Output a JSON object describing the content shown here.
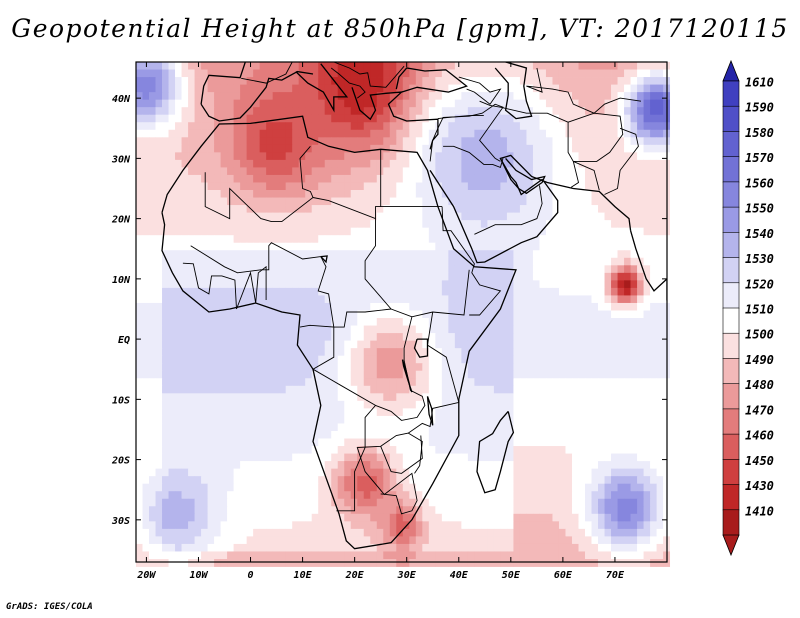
{
  "title": "Geopotential Height at 850hPa [gpm], VT: 2017120115",
  "credit": "GrADS: IGES/COLA",
  "map": {
    "lon_min": -22,
    "lon_max": 80,
    "lat_min": -37,
    "lat_max": 46,
    "lon_ticks": [
      "20W",
      "10W",
      "0",
      "10E",
      "20E",
      "30E",
      "40E",
      "50E",
      "60E",
      "70E"
    ],
    "lon_tick_values": [
      -20,
      -10,
      0,
      10,
      20,
      30,
      40,
      50,
      60,
      70
    ],
    "lat_ticks": [
      "40N",
      "30N",
      "20N",
      "10N",
      "EQ",
      "10S",
      "20S",
      "30S"
    ],
    "lat_tick_values": [
      40,
      30,
      20,
      10,
      0,
      -10,
      -20,
      -30
    ]
  },
  "colorbar": {
    "labels": [
      "1610",
      "1590",
      "1580",
      "1570",
      "1560",
      "1550",
      "1540",
      "1530",
      "1520",
      "1510",
      "1500",
      "1490",
      "1480",
      "1470",
      "1460",
      "1450",
      "1430",
      "1410"
    ],
    "colors": [
      "#4040c0",
      "#5050c8",
      "#6262d0",
      "#7272d6",
      "#8686de",
      "#9a9ae5",
      "#b4b4ec",
      "#d2d2f4",
      "#ececfa",
      "#ffffff",
      "#fbe0e0",
      "#f3b9b9",
      "#eb9a9a",
      "#e37c7c",
      "#da5e5e",
      "#cf3f3f",
      "#c02727",
      "#a81c1c"
    ],
    "top_arrow_color": "#2424a8",
    "bottom_arrow_color": "#a81c1c"
  },
  "field": {
    "blobs": [
      {
        "name": "mediterranean-low",
        "lon": 22,
        "lat": 42,
        "level": 17,
        "r": 11
      },
      {
        "name": "atlas-low",
        "lon": 5,
        "lat": 33,
        "level": 15,
        "r": 9
      },
      {
        "name": "indian-ocean-low",
        "lon": 72,
        "lat": 9,
        "level": 17,
        "r": 3
      },
      {
        "name": "kalahari-low",
        "lon": 22,
        "lat": -24,
        "level": 14,
        "r": 6
      },
      {
        "name": "south-africa-low",
        "lon": 29,
        "lat": -31,
        "level": 14,
        "r": 4
      },
      {
        "name": "east-africa-low",
        "lon": 27,
        "lat": -4,
        "level": 12,
        "r": 9
      },
      {
        "name": "west-atlantic-high",
        "lon": -14,
        "lat": -29,
        "level": 6,
        "r": 8
      },
      {
        "name": "east-indian-high",
        "lon": 72,
        "lat": -28,
        "level": 4,
        "r": 7
      },
      {
        "name": "north-atlantic-high",
        "lon": -20,
        "lat": 42,
        "level": 4,
        "r": 7
      },
      {
        "name": "tibet-high",
        "lon": 78,
        "lat": 38,
        "level": 2,
        "r": 6
      },
      {
        "name": "arabia-high",
        "lon": 45,
        "lat": 30,
        "level": 6,
        "r": 15
      }
    ]
  }
}
